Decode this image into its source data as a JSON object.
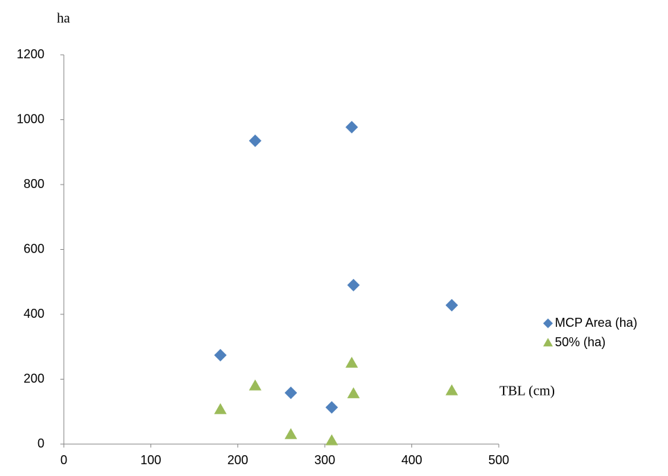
{
  "chart_data": {
    "type": "scatter",
    "x_label": "TBL (cm)",
    "y_label": "ha",
    "xlim": [
      0,
      500
    ],
    "xticks": [
      0,
      100,
      200,
      300,
      400,
      500
    ],
    "ylim": [
      0,
      1200
    ],
    "yticks": [
      0,
      200,
      400,
      600,
      800,
      1000,
      1200
    ],
    "grid": false,
    "legend": "right",
    "series": [
      {
        "name": "MCP Area (ha)",
        "color": "#4f81bd",
        "marker": "diamond",
        "x": [
          180,
          220,
          261,
          308,
          331,
          333,
          446
        ],
        "values": [
          274,
          935,
          158,
          113,
          977,
          490,
          428
        ]
      },
      {
        "name": "50% (ha)",
        "color": "#9bbb59",
        "marker": "triangle",
        "x": [
          180,
          220,
          261,
          308,
          331,
          333,
          446
        ],
        "values": [
          107,
          180,
          30,
          11,
          250,
          156,
          165
        ]
      }
    ]
  }
}
